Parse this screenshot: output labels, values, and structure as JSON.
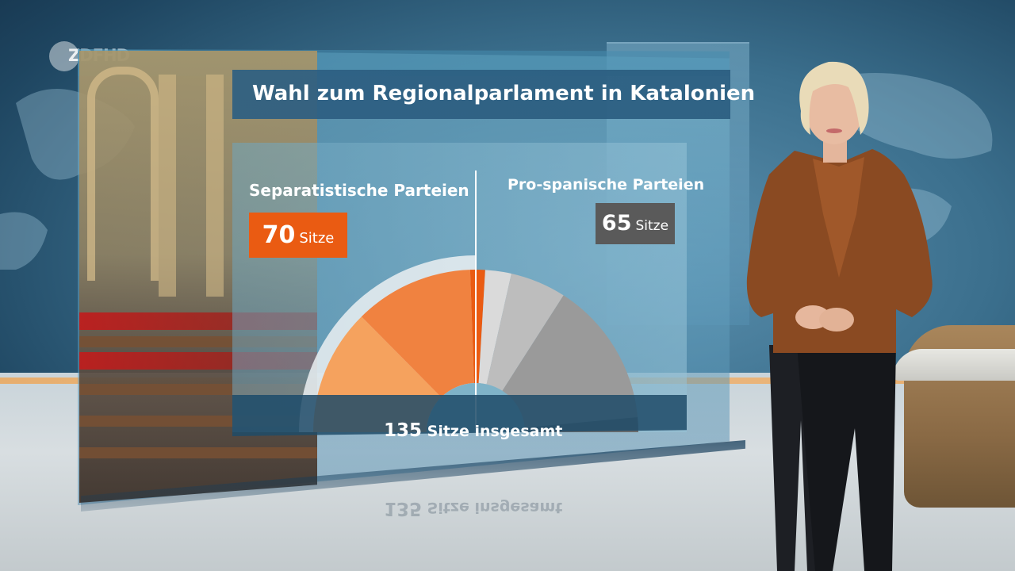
{
  "broadcaster_logo": "ZDFHD",
  "title": "Wahl zum Regionalparlament in Katalonien",
  "left_group": {
    "label": "Separatistische Parteien",
    "seats_number": "70",
    "seats_unit": "Sitze",
    "color": "#ea5b12"
  },
  "right_group": {
    "label": "Pro-spanische Parteien",
    "seats_number": "65",
    "seats_unit": "Sitze",
    "color": "#5a5a5a"
  },
  "total": {
    "number": "135",
    "text": "Sitze insgesamt"
  },
  "chart_data": {
    "type": "pie",
    "variant": "semicircle-parliament",
    "total_seats": 135,
    "categories": [
      "Separatistische Parteien",
      "Pro-spanische Parteien"
    ],
    "values": [
      70,
      65
    ],
    "segments": [
      {
        "group": "Separatistische Parteien",
        "value": 34,
        "color": "#f5a25e"
      },
      {
        "group": "Separatistische Parteien",
        "value": 32,
        "color": "#f08240"
      },
      {
        "group": "Separatistische Parteien",
        "value": 4,
        "color": "#ea5b12"
      },
      {
        "group": "Pro-spanische Parteien",
        "value": 7,
        "color": "#dadada"
      },
      {
        "group": "Pro-spanische Parteien",
        "value": 15,
        "color": "#bdbdbd"
      },
      {
        "group": "Pro-spanische Parteien",
        "value": 39,
        "color": "#9a9a9a"
      },
      {
        "group": "Pro-spanische Parteien",
        "value": 4,
        "color": "#6c6c6c"
      }
    ]
  }
}
